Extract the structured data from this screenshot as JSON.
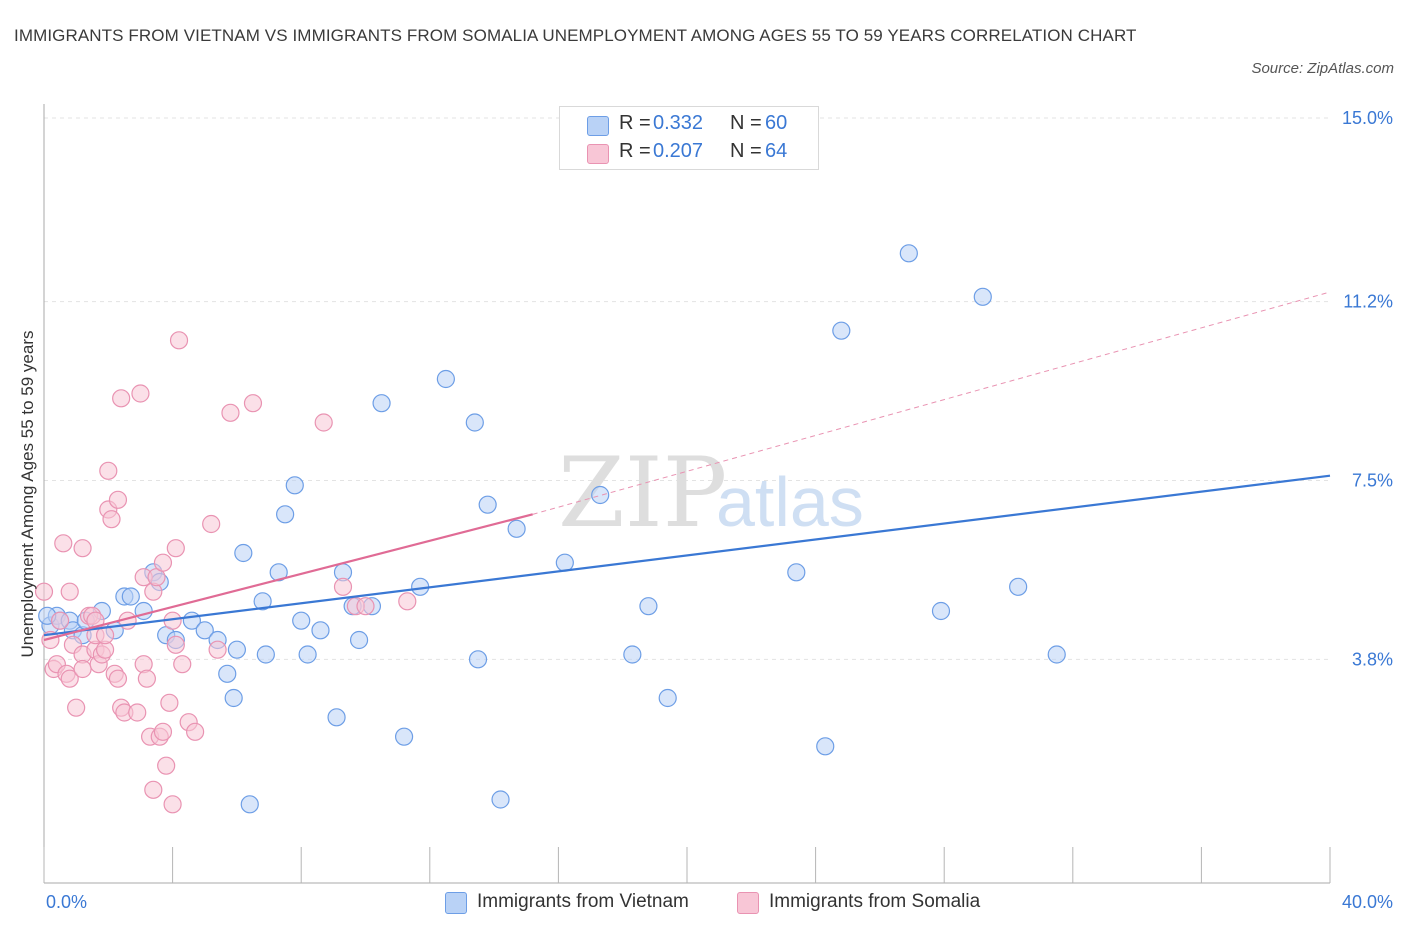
{
  "title": "IMMIGRANTS FROM VIETNAM VS IMMIGRANTS FROM SOMALIA UNEMPLOYMENT AMONG AGES 55 TO 59 YEARS CORRELATION CHART",
  "source": "Source: ZipAtlas.com",
  "watermark": {
    "zip": "ZIP",
    "atlas": "atlas"
  },
  "stats": [
    {
      "r_label": "R =",
      "r_value": "0.332",
      "n_label": "N =",
      "n_value": "60",
      "color": "#6d9ee6",
      "fill": "#b9d2f6"
    },
    {
      "r_label": "R =",
      "r_value": "0.207",
      "n_label": "N =",
      "n_value": "64",
      "color": "#e56f97",
      "fill": "#f8c6d6"
    }
  ],
  "legend": [
    {
      "label": "Immigrants from Vietnam",
      "fill": "#b9d2f6",
      "stroke": "#6d9ee6"
    },
    {
      "label": "Immigrants from Somalia",
      "fill": "#f8c6d6",
      "stroke": "#e993b2"
    }
  ],
  "chart_data": {
    "type": "scatter",
    "title": "IMMIGRANTS FROM VIETNAM VS IMMIGRANTS FROM SOMALIA UNEMPLOYMENT AMONG AGES 55 TO 59 YEARS CORRELATION CHART",
    "xlabel": "",
    "ylabel": "Unemployment Among Ages 55 to 59 years",
    "xlim": [
      0,
      40
    ],
    "ylim": [
      0,
      15
    ],
    "x_tick_labels": [
      "0.0%",
      "40.0%"
    ],
    "y_ticks": [
      3.8,
      7.5,
      11.2,
      15.0
    ],
    "y_tick_labels": [
      "3.8%",
      "7.5%",
      "11.2%",
      "15.0%"
    ],
    "grid": true,
    "accent_color": "#3a78d4",
    "series": [
      {
        "name": "Immigrants from Vietnam",
        "color": "#6d9ee6",
        "fill": "#b9d2f6",
        "trend": {
          "x": [
            0,
            40
          ],
          "y": [
            4.3,
            7.6
          ],
          "color": "#3a78d4",
          "dashed": false
        },
        "points": [
          [
            0.2,
            4.5
          ],
          [
            0.4,
            4.7
          ],
          [
            0.5,
            4.6
          ],
          [
            0.8,
            4.6
          ],
          [
            0.9,
            4.4
          ],
          [
            1.2,
            4.3
          ],
          [
            1.3,
            4.6
          ],
          [
            1.8,
            4.8
          ],
          [
            2.2,
            4.4
          ],
          [
            2.5,
            5.1
          ],
          [
            2.7,
            5.1
          ],
          [
            3.1,
            4.8
          ],
          [
            3.4,
            5.6
          ],
          [
            3.6,
            5.4
          ],
          [
            3.8,
            4.3
          ],
          [
            4.1,
            4.2
          ],
          [
            4.6,
            4.6
          ],
          [
            5.0,
            4.4
          ],
          [
            5.4,
            4.2
          ],
          [
            5.7,
            3.5
          ],
          [
            5.9,
            3.0
          ],
          [
            6.0,
            4.0
          ],
          [
            6.2,
            6.0
          ],
          [
            6.4,
            0.8
          ],
          [
            6.8,
            5.0
          ],
          [
            6.9,
            3.9
          ],
          [
            7.3,
            5.6
          ],
          [
            7.5,
            6.8
          ],
          [
            7.8,
            7.4
          ],
          [
            8.0,
            4.6
          ],
          [
            8.2,
            3.9
          ],
          [
            8.6,
            4.4
          ],
          [
            9.1,
            2.6
          ],
          [
            9.3,
            5.6
          ],
          [
            9.6,
            4.9
          ],
          [
            9.8,
            4.2
          ],
          [
            10.2,
            4.9
          ],
          [
            10.5,
            9.1
          ],
          [
            11.2,
            2.2
          ],
          [
            11.7,
            5.3
          ],
          [
            12.5,
            9.6
          ],
          [
            13.4,
            8.7
          ],
          [
            13.5,
            3.8
          ],
          [
            13.8,
            7.0
          ],
          [
            14.2,
            0.9
          ],
          [
            14.7,
            6.5
          ],
          [
            16.2,
            5.8
          ],
          [
            17.3,
            7.2
          ],
          [
            18.3,
            3.9
          ],
          [
            18.8,
            4.9
          ],
          [
            19.4,
            3.0
          ],
          [
            23.4,
            5.6
          ],
          [
            24.3,
            2.0
          ],
          [
            24.8,
            10.6
          ],
          [
            26.9,
            12.2
          ],
          [
            27.9,
            4.8
          ],
          [
            29.2,
            11.3
          ],
          [
            30.3,
            5.3
          ],
          [
            31.5,
            3.9
          ],
          [
            0.1,
            4.7
          ]
        ]
      },
      {
        "name": "Immigrants from Somalia",
        "color": "#e993b2",
        "fill": "#f8c6d6",
        "trend": {
          "x": [
            0,
            15.2
          ],
          "y": [
            4.2,
            6.8
          ],
          "color": "#e06b95",
          "dashed": false
        },
        "trend_extension": {
          "x": [
            15.2,
            40
          ],
          "y": [
            6.8,
            11.4
          ],
          "dashed": true
        },
        "points": [
          [
            0.0,
            5.2
          ],
          [
            0.2,
            4.2
          ],
          [
            0.3,
            3.6
          ],
          [
            0.4,
            3.7
          ],
          [
            0.5,
            4.6
          ],
          [
            0.6,
            6.2
          ],
          [
            0.7,
            3.5
          ],
          [
            0.8,
            3.4
          ],
          [
            0.8,
            5.2
          ],
          [
            0.9,
            4.1
          ],
          [
            1.0,
            2.8
          ],
          [
            1.2,
            3.9
          ],
          [
            1.2,
            3.6
          ],
          [
            1.2,
            6.1
          ],
          [
            1.4,
            4.7
          ],
          [
            1.5,
            4.7
          ],
          [
            1.6,
            4.0
          ],
          [
            1.6,
            4.3
          ],
          [
            1.7,
            3.7
          ],
          [
            1.8,
            3.9
          ],
          [
            1.9,
            4.0
          ],
          [
            1.9,
            4.3
          ],
          [
            2.0,
            6.9
          ],
          [
            2.0,
            7.7
          ],
          [
            2.1,
            6.7
          ],
          [
            2.2,
            3.5
          ],
          [
            2.3,
            7.1
          ],
          [
            2.3,
            3.4
          ],
          [
            2.4,
            2.8
          ],
          [
            2.4,
            9.2
          ],
          [
            2.5,
            2.7
          ],
          [
            2.6,
            4.6
          ],
          [
            2.9,
            2.7
          ],
          [
            3.0,
            9.3
          ],
          [
            3.1,
            3.7
          ],
          [
            3.1,
            5.5
          ],
          [
            3.2,
            3.4
          ],
          [
            3.3,
            2.2
          ],
          [
            3.4,
            5.2
          ],
          [
            3.4,
            1.1
          ],
          [
            3.5,
            5.5
          ],
          [
            3.6,
            2.2
          ],
          [
            3.7,
            5.8
          ],
          [
            3.7,
            2.3
          ],
          [
            3.8,
            1.6
          ],
          [
            3.9,
            2.9
          ],
          [
            4.0,
            0.8
          ],
          [
            4.0,
            4.6
          ],
          [
            4.1,
            4.1
          ],
          [
            4.1,
            6.1
          ],
          [
            4.2,
            10.4
          ],
          [
            4.3,
            3.7
          ],
          [
            4.5,
            2.5
          ],
          [
            4.7,
            2.3
          ],
          [
            5.2,
            6.6
          ],
          [
            5.4,
            4.0
          ],
          [
            5.8,
            8.9
          ],
          [
            6.5,
            9.1
          ],
          [
            8.7,
            8.7
          ],
          [
            9.3,
            5.3
          ],
          [
            9.7,
            4.9
          ],
          [
            10.0,
            4.9
          ],
          [
            11.3,
            5.0
          ],
          [
            1.6,
            4.6
          ]
        ]
      }
    ]
  }
}
